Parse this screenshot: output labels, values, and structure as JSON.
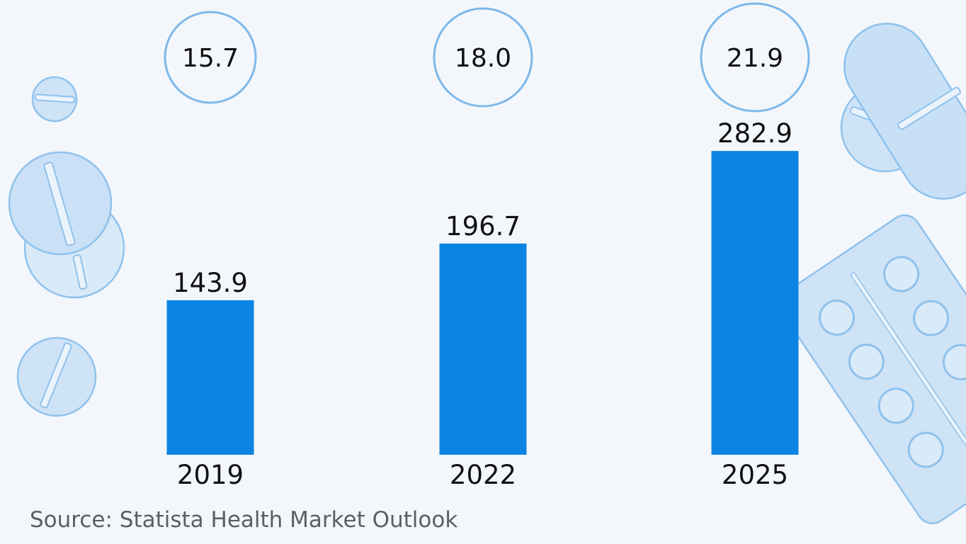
{
  "chart_data": {
    "type": "bar",
    "categories": [
      "2019",
      "2022",
      "2025"
    ],
    "values": [
      143.9,
      196.7,
      282.9
    ],
    "bubble_values": [
      "15.7",
      "18.0",
      "21.9"
    ],
    "value_labels": [
      "143.9",
      "196.7",
      "282.9"
    ],
    "ylim": [
      0,
      320
    ],
    "grid": false,
    "bar_color": "#0b84e3",
    "bubble_stroke": "#7db8ea"
  },
  "decorations": [
    "pill-icon",
    "tablet-icon",
    "capsule-icon",
    "blister-pack-icon"
  ],
  "source": "Source: Statista Health Market Outlook"
}
